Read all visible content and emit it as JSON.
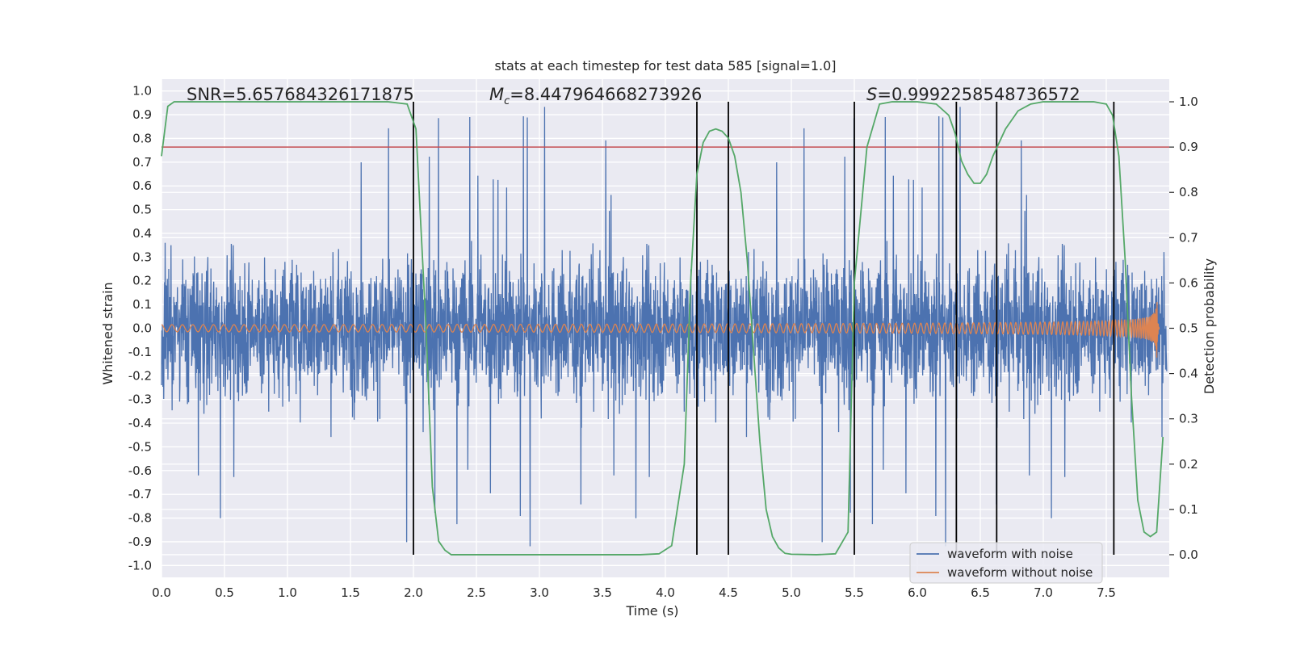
{
  "chart_data": {
    "type": "line",
    "title": "stats at each timestep for test data 585 [signal=1.0]",
    "xlabel": "Time (s)",
    "ylabel": "Whitened strain",
    "y2label": "Detection probability",
    "xlim": [
      0.0,
      8.0
    ],
    "ylim": [
      -1.05,
      1.05
    ],
    "y2lim": [
      -0.05,
      1.05
    ],
    "x_ticks": [
      "0.0",
      "0.5",
      "1.0",
      "1.5",
      "2.0",
      "2.5",
      "3.0",
      "3.5",
      "4.0",
      "4.5",
      "5.0",
      "5.5",
      "6.0",
      "6.5",
      "7.0",
      "7.5"
    ],
    "y_ticks": [
      "1.0",
      "0.9",
      "0.8",
      "0.7",
      "0.6",
      "0.5",
      "0.4",
      "0.3",
      "0.2",
      "0.1",
      "0.0",
      "-0.1",
      "-0.2",
      "-0.3",
      "-0.4",
      "-0.5",
      "-0.6",
      "-0.7",
      "-0.8",
      "-0.9",
      "-1.0"
    ],
    "y2_ticks": [
      "1.0",
      "0.9",
      "0.8",
      "0.7",
      "0.6",
      "0.5",
      "0.4",
      "0.3",
      "0.2",
      "0.1",
      "0.0"
    ],
    "grid": true,
    "annotations": {
      "snr": "SNR=5.657684326171875",
      "mc_symbol": "M",
      "mc_sub": "c",
      "mc_value": "=8.447964668273926",
      "s_symbol": "S",
      "s_value": "=0.9992258548736572"
    },
    "threshold": {
      "axis": "y2",
      "value": 0.9,
      "color": "#c44e52"
    },
    "vertical_lines": [
      2.0,
      4.25,
      4.5,
      5.5,
      6.31,
      6.63,
      7.56
    ],
    "series": [
      {
        "name": "waveform with noise",
        "color": "#4c72b0",
        "style": "noise",
        "amplitude_typical": 0.45,
        "amplitude_peak": 0.96
      },
      {
        "name": "waveform without noise",
        "color": "#dd8452",
        "style": "chirp",
        "start_amplitude": 0.015,
        "peak_amplitude": 0.19,
        "merger_time": 7.9,
        "end_time": 7.92
      },
      {
        "name": "Detection probability",
        "color": "#55a868",
        "axis": "y2",
        "x": [
          0.0,
          0.05,
          0.1,
          0.2,
          0.3,
          0.5,
          1.0,
          1.5,
          1.8,
          1.95,
          2.02,
          2.1,
          2.15,
          2.2,
          2.25,
          2.3,
          2.4,
          2.6,
          3.0,
          3.5,
          3.8,
          3.95,
          4.05,
          4.15,
          4.2,
          4.25,
          4.3,
          4.35,
          4.4,
          4.45,
          4.5,
          4.55,
          4.6,
          4.65,
          4.7,
          4.75,
          4.8,
          4.85,
          4.9,
          4.95,
          5.0,
          5.2,
          5.35,
          5.45,
          5.5,
          5.6,
          5.7,
          5.8,
          6.0,
          6.15,
          6.25,
          6.3,
          6.35,
          6.4,
          6.45,
          6.5,
          6.55,
          6.6,
          6.7,
          6.8,
          6.9,
          7.0,
          7.2,
          7.4,
          7.5,
          7.55,
          7.6,
          7.65,
          7.7,
          7.75,
          7.8,
          7.85,
          7.9,
          7.95
        ],
        "y": [
          0.88,
          0.99,
          1.0,
          1.0,
          1.0,
          1.0,
          1.0,
          1.0,
          1.0,
          0.995,
          0.94,
          0.5,
          0.15,
          0.03,
          0.01,
          0.0,
          0.0,
          0.0,
          0.0,
          0.0,
          0.0,
          0.002,
          0.02,
          0.2,
          0.6,
          0.84,
          0.91,
          0.935,
          0.94,
          0.935,
          0.92,
          0.88,
          0.8,
          0.65,
          0.45,
          0.25,
          0.1,
          0.04,
          0.015,
          0.003,
          0.001,
          0.0,
          0.002,
          0.05,
          0.6,
          0.9,
          0.995,
          1.0,
          1.0,
          0.995,
          0.97,
          0.93,
          0.87,
          0.84,
          0.82,
          0.82,
          0.84,
          0.88,
          0.94,
          0.98,
          0.995,
          1.0,
          1.0,
          1.0,
          0.995,
          0.97,
          0.88,
          0.65,
          0.35,
          0.12,
          0.05,
          0.04,
          0.05,
          0.26
        ]
      }
    ],
    "legend": {
      "position": "bottom-right",
      "entries": [
        "waveform with noise",
        "waveform without noise"
      ]
    }
  }
}
